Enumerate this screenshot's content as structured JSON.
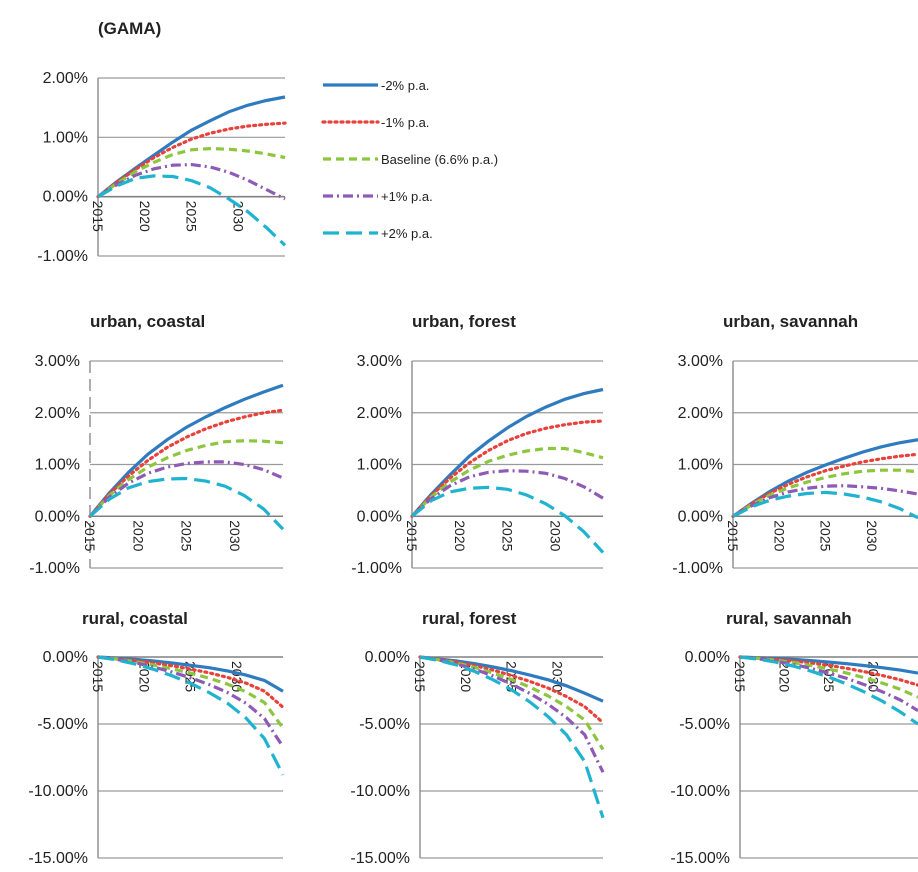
{
  "figure": {
    "top_label": "(GAMA)"
  },
  "series_styles": [
    {
      "name": "-2% p.a.",
      "color": "#2f7bbf",
      "dash": "solid"
    },
    {
      "name": "-1% p.a.",
      "color": "#e8413a",
      "dash": "dotted"
    },
    {
      "name": "Baseline (6.6% p.a.)",
      "color": "#8cc63f",
      "dash": "dashed"
    },
    {
      "name": "+1% p.a.",
      "color": "#8e5ab5",
      "dash": "dash-dot"
    },
    {
      "name": "+2% p.a.",
      "color": "#1fb3cf",
      "dash": "long-dash"
    }
  ],
  "chart_data": [
    {
      "type": "line",
      "title": "(GAMA)",
      "x": [
        2015,
        2017,
        2019,
        2021,
        2023,
        2025,
        2027,
        2029,
        2031,
        2033,
        2035
      ],
      "xticks": [
        "2015",
        "2020",
        "2025",
        "2030"
      ],
      "ylim": [
        -0.01,
        0.02
      ],
      "yticks": [
        "2.00%",
        "1.00%",
        "0.00%",
        "-1.00%"
      ],
      "yticks_values": [
        0.02,
        0.01,
        0.0,
        -0.01
      ],
      "legend": "right",
      "series": [
        {
          "name": "-2% p.a.",
          "values": [
            0,
            0.0025,
            0.0048,
            0.007,
            0.0092,
            0.0112,
            0.0128,
            0.0143,
            0.0154,
            0.0162,
            0.0168
          ]
        },
        {
          "name": "-1% p.a.",
          "values": [
            0,
            0.0024,
            0.0046,
            0.0066,
            0.0083,
            0.0097,
            0.0107,
            0.0114,
            0.0119,
            0.0122,
            0.0124
          ]
        },
        {
          "name": "Baseline (6.6% p.a.)",
          "values": [
            0,
            0.0022,
            0.0042,
            0.0058,
            0.0071,
            0.0079,
            0.0081,
            0.008,
            0.0077,
            0.0072,
            0.0066
          ]
        },
        {
          "name": "+1% p.a.",
          "values": [
            0,
            0.002,
            0.0036,
            0.0047,
            0.0053,
            0.0054,
            0.005,
            0.0041,
            0.0028,
            0.0012,
            -0.0004
          ]
        },
        {
          "name": "+2% p.a.",
          "values": [
            0,
            0.0018,
            0.0031,
            0.0035,
            0.0034,
            0.0027,
            0.0015,
            -0.0004,
            -0.0025,
            -0.0052,
            -0.0082
          ]
        }
      ]
    },
    {
      "type": "line",
      "title": "urban, coastal",
      "x": [
        2015,
        2017,
        2019,
        2021,
        2023,
        2025,
        2027,
        2029,
        2031,
        2033,
        2035
      ],
      "xticks": [
        "2015",
        "2020",
        "2025",
        "2030"
      ],
      "ylim": [
        -0.01,
        0.03
      ],
      "yticks": [
        "3.00%",
        "2.00%",
        "1.00%",
        "0.00%",
        "-1.00%"
      ],
      "yticks_values": [
        0.03,
        0.02,
        0.01,
        0.0,
        -0.01
      ],
      "series": [
        {
          "name": "-2% p.a.",
          "values": [
            0,
            0.0045,
            0.0085,
            0.012,
            0.0148,
            0.0172,
            0.0192,
            0.021,
            0.0226,
            0.024,
            0.0253
          ]
        },
        {
          "name": "-1% p.a.",
          "values": [
            0,
            0.0043,
            0.0078,
            0.0108,
            0.0133,
            0.0153,
            0.0169,
            0.0182,
            0.0192,
            0.02,
            0.0205
          ]
        },
        {
          "name": "Baseline (6.6% p.a.)",
          "values": [
            0,
            0.004,
            0.0071,
            0.0095,
            0.0113,
            0.0127,
            0.0137,
            0.0144,
            0.0146,
            0.0145,
            0.0142
          ]
        },
        {
          "name": "+1% p.a.",
          "values": [
            0,
            0.0037,
            0.0064,
            0.0083,
            0.0095,
            0.0102,
            0.0105,
            0.0105,
            0.01,
            0.009,
            0.0074
          ]
        },
        {
          "name": "+2% p.a.",
          "values": [
            0,
            0.0033,
            0.0055,
            0.0067,
            0.0072,
            0.0073,
            0.0068,
            0.0058,
            0.004,
            0.0014,
            -0.0025
          ]
        }
      ]
    },
    {
      "type": "line",
      "title": "urban, forest",
      "x": [
        2015,
        2017,
        2019,
        2021,
        2023,
        2025,
        2027,
        2029,
        2031,
        2033,
        2035
      ],
      "xticks": [
        "2015",
        "2020",
        "2025",
        "2030"
      ],
      "ylim": [
        -0.01,
        0.03
      ],
      "yticks": [
        "3.00%",
        "2.00%",
        "1.00%",
        "0.00%",
        "-1.00%"
      ],
      "yticks_values": [
        0.03,
        0.02,
        0.01,
        0.0,
        -0.01
      ],
      "series": [
        {
          "name": "-2% p.a.",
          "values": [
            0,
            0.0042,
            0.008,
            0.0116,
            0.0145,
            0.0171,
            0.0193,
            0.0211,
            0.0226,
            0.0237,
            0.0245
          ]
        },
        {
          "name": "-1% p.a.",
          "values": [
            0,
            0.004,
            0.0074,
            0.0103,
            0.0127,
            0.0146,
            0.016,
            0.017,
            0.0177,
            0.0182,
            0.0184
          ]
        },
        {
          "name": "Baseline (6.6% p.a.)",
          "values": [
            0,
            0.0037,
            0.0066,
            0.0089,
            0.0106,
            0.0118,
            0.0126,
            0.0131,
            0.0131,
            0.0123,
            0.0113
          ]
        },
        {
          "name": "+1% p.a.",
          "values": [
            0,
            0.0034,
            0.0059,
            0.0076,
            0.0085,
            0.0088,
            0.0087,
            0.0083,
            0.0073,
            0.0057,
            0.0035
          ]
        },
        {
          "name": "+2% p.a.",
          "values": [
            0,
            0.003,
            0.0047,
            0.0054,
            0.0056,
            0.0052,
            0.0041,
            0.0024,
            0.0001,
            -0.003,
            -0.007
          ]
        }
      ]
    },
    {
      "type": "line",
      "title": "urban, savannah",
      "x": [
        2015,
        2017,
        2019,
        2021,
        2023,
        2025,
        2027,
        2029,
        2031,
        2033,
        2035
      ],
      "xticks": [
        "2015",
        "2020",
        "2025",
        "2030"
      ],
      "ylim": [
        -0.01,
        0.03
      ],
      "yticks": [
        "3.00%",
        "2.00%",
        "1.00%",
        "0.00%",
        "-1.00%"
      ],
      "yticks_values": [
        0.03,
        0.02,
        0.01,
        0.0,
        -0.01
      ],
      "series": [
        {
          "name": "-2% p.a.",
          "values": [
            0,
            0.0025,
            0.0048,
            0.0068,
            0.0085,
            0.0099,
            0.0112,
            0.0124,
            0.0134,
            0.0142,
            0.0148
          ]
        },
        {
          "name": "-1% p.a.",
          "values": [
            0,
            0.0024,
            0.0045,
            0.0062,
            0.0076,
            0.0088,
            0.0097,
            0.0105,
            0.0111,
            0.0116,
            0.012
          ]
        },
        {
          "name": "Baseline (6.6% p.a.)",
          "values": [
            0,
            0.0022,
            0.0041,
            0.0055,
            0.0066,
            0.0075,
            0.0082,
            0.0087,
            0.0089,
            0.0089,
            0.0086
          ]
        },
        {
          "name": "+1% p.a.",
          "values": [
            0,
            0.002,
            0.0036,
            0.0047,
            0.0054,
            0.0058,
            0.0059,
            0.0057,
            0.0054,
            0.0049,
            0.0043
          ]
        },
        {
          "name": "+2% p.a.",
          "values": [
            0,
            0.0018,
            0.0031,
            0.0039,
            0.0044,
            0.0046,
            0.0043,
            0.0037,
            0.0028,
            0.0015,
            -0.0003
          ]
        }
      ]
    },
    {
      "type": "line",
      "title": "rural, coastal",
      "x": [
        2015,
        2017,
        2019,
        2021,
        2023,
        2025,
        2027,
        2029,
        2031,
        2033,
        2035
      ],
      "xticks": [
        "2015",
        "2020",
        "2025",
        "2030"
      ],
      "ylim": [
        -0.15,
        0.0
      ],
      "yticks": [
        "0.00%",
        "-5.00%",
        "-10.00%",
        "-15.00%"
      ],
      "yticks_values": [
        0.0,
        -0.05,
        -0.1,
        -0.15
      ],
      "series": [
        {
          "name": "-2% p.a.",
          "values": [
            0,
            -0.0008,
            -0.0018,
            -0.003,
            -0.0045,
            -0.0062,
            -0.008,
            -0.0104,
            -0.0135,
            -0.0175,
            -0.0255
          ]
        },
        {
          "name": "-1% p.a.",
          "values": [
            0,
            -0.0012,
            -0.0027,
            -0.0045,
            -0.0065,
            -0.009,
            -0.0118,
            -0.0152,
            -0.0195,
            -0.0255,
            -0.0375
          ]
        },
        {
          "name": "Baseline (6.6% p.a.)",
          "values": [
            0,
            -0.0015,
            -0.0035,
            -0.006,
            -0.0088,
            -0.012,
            -0.0158,
            -0.0202,
            -0.026,
            -0.034,
            -0.053
          ]
        },
        {
          "name": "+1% p.a.",
          "values": [
            0,
            -0.0018,
            -0.0042,
            -0.0075,
            -0.0112,
            -0.0155,
            -0.0205,
            -0.0265,
            -0.0345,
            -0.046,
            -0.067
          ]
        },
        {
          "name": "+2% p.a.",
          "values": [
            0,
            -0.0022,
            -0.0052,
            -0.0092,
            -0.014,
            -0.0196,
            -0.0265,
            -0.0345,
            -0.0455,
            -0.061,
            -0.088
          ]
        }
      ]
    },
    {
      "type": "line",
      "title": "rural, forest",
      "x": [
        2015,
        2017,
        2019,
        2021,
        2023,
        2025,
        2027,
        2029,
        2031,
        2033,
        2035
      ],
      "xticks": [
        "2015",
        "2020",
        "2025",
        "2030"
      ],
      "ylim": [
        -0.15,
        0.0
      ],
      "yticks": [
        "0.00%",
        "-5.00%",
        "-10.00%",
        "-15.00%"
      ],
      "yticks_values": [
        0.0,
        -0.05,
        -0.1,
        -0.15
      ],
      "series": [
        {
          "name": "-2% p.a.",
          "values": [
            0,
            -0.0015,
            -0.003,
            -0.005,
            -0.0075,
            -0.0102,
            -0.0135,
            -0.017,
            -0.0215,
            -0.027,
            -0.033
          ]
        },
        {
          "name": "-1% p.a.",
          "values": [
            0,
            -0.0018,
            -0.0038,
            -0.0065,
            -0.0098,
            -0.0138,
            -0.0182,
            -0.0232,
            -0.0295,
            -0.037,
            -0.049
          ]
        },
        {
          "name": "Baseline (6.6% p.a.)",
          "values": [
            0,
            -0.002,
            -0.0045,
            -0.0078,
            -0.012,
            -0.0168,
            -0.0225,
            -0.029,
            -0.037,
            -0.047,
            -0.069
          ]
        },
        {
          "name": "+1% p.a.",
          "values": [
            0,
            -0.0022,
            -0.0052,
            -0.0092,
            -0.0142,
            -0.0202,
            -0.0272,
            -0.0352,
            -0.0452,
            -0.058,
            -0.086
          ]
        },
        {
          "name": "+2% p.a.",
          "values": [
            0,
            -0.0025,
            -0.006,
            -0.0108,
            -0.017,
            -0.0245,
            -0.0335,
            -0.0445,
            -0.058,
            -0.078,
            -0.12
          ]
        }
      ]
    },
    {
      "type": "line",
      "title": "rural, savannah",
      "x": [
        2015,
        2017,
        2019,
        2021,
        2023,
        2025,
        2027,
        2029,
        2031,
        2033,
        2035
      ],
      "xticks": [
        "2015",
        "2020",
        "2025",
        "2030"
      ],
      "ylim": [
        -0.15,
        0.0
      ],
      "yticks": [
        "0.00%",
        "-5.00%",
        "-10.00%",
        "-15.00%"
      ],
      "yticks_values": [
        0.0,
        -0.05,
        -0.1,
        -0.15
      ],
      "series": [
        {
          "name": "-2% p.a.",
          "values": [
            0,
            -0.0005,
            -0.0011,
            -0.0018,
            -0.0027,
            -0.0038,
            -0.005,
            -0.0064,
            -0.008,
            -0.0098,
            -0.012
          ]
        },
        {
          "name": "-1% p.a.",
          "values": [
            0,
            -0.0008,
            -0.0018,
            -0.003,
            -0.0045,
            -0.0063,
            -0.0085,
            -0.011,
            -0.0138,
            -0.017,
            -0.021
          ]
        },
        {
          "name": "Baseline (6.6% p.a.)",
          "values": [
            0,
            -0.001,
            -0.0024,
            -0.0042,
            -0.0064,
            -0.009,
            -0.012,
            -0.0155,
            -0.0195,
            -0.024,
            -0.03
          ]
        },
        {
          "name": "+1% p.a.",
          "values": [
            0,
            -0.0013,
            -0.0031,
            -0.0055,
            -0.0085,
            -0.012,
            -0.016,
            -0.0207,
            -0.026,
            -0.032,
            -0.04
          ]
        },
        {
          "name": "+2% p.a.",
          "values": [
            0,
            -0.0016,
            -0.0038,
            -0.0068,
            -0.0106,
            -0.015,
            -0.0202,
            -0.0262,
            -0.033,
            -0.041,
            -0.05
          ]
        }
      ]
    }
  ]
}
